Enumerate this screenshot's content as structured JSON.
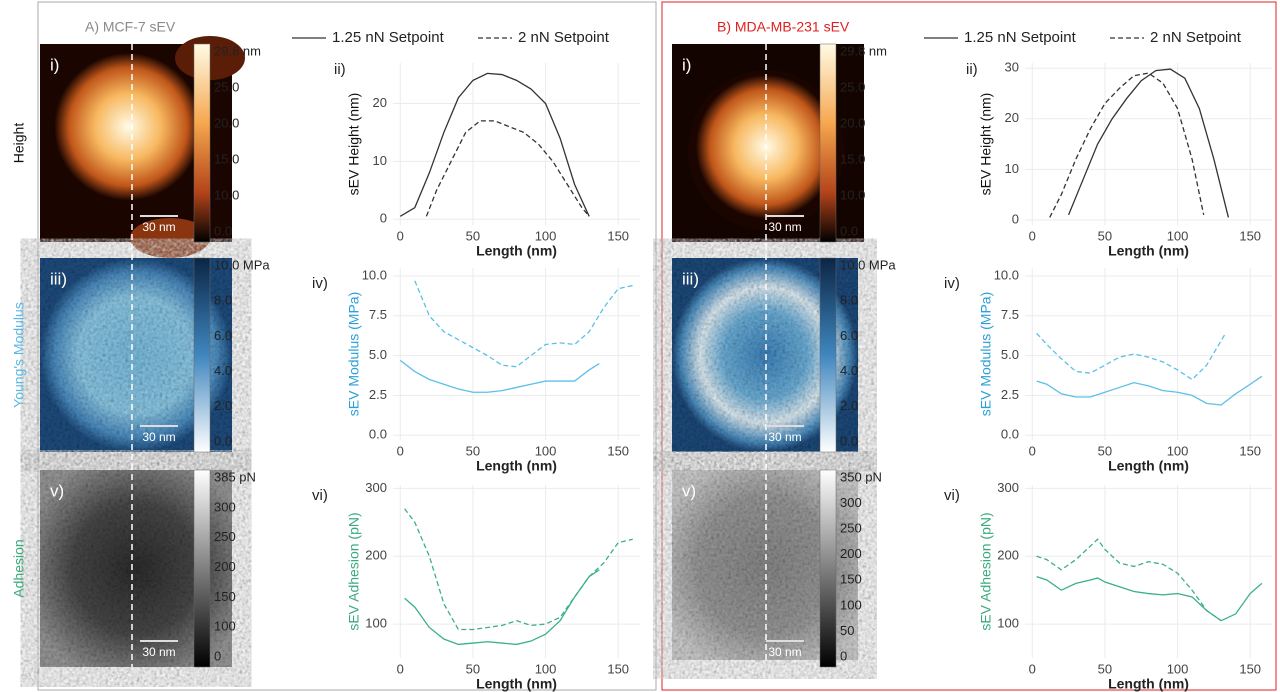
{
  "figure": {
    "row_labels": [
      {
        "text": "Height",
        "color": "#111111"
      },
      {
        "text": "Young's Modulus",
        "color": "#5bb8e6"
      },
      {
        "text": "Adhesion",
        "color": "#3aaa7e"
      }
    ],
    "panels": [
      {
        "title": "A) MCF-7 sEV",
        "title_color": "#8a8a8a",
        "rows": [
          {
            "image_label": "i)",
            "scale_bar": "30 nm",
            "chart_label": "ii)",
            "colorbar": [
              "29.8 nm",
              "25.0",
              "20.0",
              "15.0",
              "10.0",
              "0.0"
            ]
          },
          {
            "image_label": "iii)",
            "scale_bar": "30 nm",
            "chart_label": "iv)",
            "colorbar": [
              "10.0 MPa",
              "8.0",
              "6.0",
              "4.0",
              "2.0",
              "0.0"
            ]
          },
          {
            "image_label": "v)",
            "scale_bar": "30 nm",
            "chart_label": "vi)",
            "colorbar": [
              "385 pN",
              "300",
              "250",
              "200",
              "150",
              "100",
              "0"
            ]
          }
        ]
      },
      {
        "title": "B) MDA-MB-231 sEV",
        "title_color": "#e02020",
        "rows": [
          {
            "image_label": "i)",
            "scale_bar": "30 nm",
            "chart_label": "ii)",
            "colorbar": [
              "29.8 nm",
              "25.0",
              "20.0",
              "15.0",
              "10.0",
              "0.0"
            ]
          },
          {
            "image_label": "iii)",
            "scale_bar": "30 nm",
            "chart_label": "iv)",
            "colorbar": [
              "10.0 MPa",
              "8.0",
              "6.0",
              "4.0",
              "2.0",
              "0.0"
            ]
          },
          {
            "image_label": "v)",
            "scale_bar": "30 nm",
            "chart_label": "vi)",
            "colorbar": [
              "350 pN",
              "300",
              "250",
              "200",
              "150",
              "100",
              "50",
              "0"
            ]
          }
        ]
      }
    ]
  },
  "chart_data": [
    {
      "type": "line",
      "x_label": "Length (nm)",
      "y_label": "sEV Height (nm)",
      "y_label_color": "#111111",
      "xlim": [
        -5,
        165
      ],
      "ylim": [
        -1,
        27
      ],
      "xticks": [
        0,
        50,
        100,
        150
      ],
      "yticks": [
        0,
        10,
        20
      ],
      "grid": true,
      "series": [
        {
          "name": "1.25 nN Setpoint",
          "color": "#333333",
          "style": "solid",
          "x": [
            0,
            10,
            20,
            30,
            40,
            50,
            60,
            70,
            80,
            90,
            100,
            110,
            120,
            130
          ],
          "values": [
            0.5,
            2,
            8,
            15,
            21,
            24,
            25.2,
            25,
            24,
            22.5,
            20,
            14,
            6,
            0.5
          ]
        },
        {
          "name": "2 nN Setpoint",
          "color": "#333333",
          "style": "dashed",
          "x": [
            18,
            25,
            35,
            45,
            55,
            65,
            75,
            85,
            95,
            105,
            115,
            125,
            130
          ],
          "values": [
            0.5,
            5,
            10,
            15,
            17,
            17,
            16,
            15,
            13,
            10,
            6,
            2,
            0.5
          ]
        }
      ]
    },
    {
      "type": "line",
      "x_label": "Length (nm)",
      "y_label": "sEV Modulus (MPa)",
      "y_label_color": "#2aa0d8",
      "xlim": [
        -5,
        165
      ],
      "ylim": [
        -0.3,
        10.5
      ],
      "xticks": [
        0,
        50,
        100,
        150
      ],
      "yticks": [
        {
          "value": 0,
          "label": "0.0"
        },
        {
          "value": 2.5,
          "label": "2.5"
        },
        {
          "value": 5,
          "label": "5.0"
        },
        {
          "value": 7.5,
          "label": "7.5"
        },
        {
          "value": 10,
          "label": "10.0"
        }
      ],
      "grid": true,
      "series": [
        {
          "color": "#5bc0e8",
          "style": "solid",
          "x": [
            0,
            10,
            20,
            30,
            40,
            50,
            60,
            70,
            80,
            90,
            100,
            110,
            120,
            130,
            137
          ],
          "values": [
            4.7,
            4,
            3.5,
            3.2,
            2.9,
            2.7,
            2.7,
            2.8,
            3,
            3.2,
            3.4,
            3.4,
            3.4,
            4.1,
            4.5
          ]
        },
        {
          "color": "#5bc0e8",
          "style": "dashed",
          "x": [
            10,
            20,
            30,
            40,
            50,
            60,
            70,
            80,
            90,
            100,
            110,
            120,
            130,
            140,
            150,
            160
          ],
          "values": [
            9.7,
            7.5,
            6.5,
            6,
            5.5,
            5,
            4.4,
            4.3,
            5,
            5.7,
            5.8,
            5.7,
            6.5,
            8,
            9.2,
            9.4
          ]
        }
      ]
    },
    {
      "type": "line",
      "x_label": "Length (nm)",
      "y_label": "sEV Adhesion (pN)",
      "y_label_color": "#3aaa7e",
      "xlim": [
        -5,
        165
      ],
      "ylim": [
        50,
        305
      ],
      "xticks": [
        0,
        50,
        100,
        150
      ],
      "yticks": [
        100,
        200,
        300
      ],
      "grid": true,
      "series": [
        {
          "color": "#3ab08a",
          "style": "solid",
          "x": [
            3,
            10,
            20,
            30,
            40,
            50,
            60,
            70,
            80,
            90,
            100,
            110,
            120,
            130,
            137
          ],
          "values": [
            138,
            125,
            95,
            78,
            70,
            72,
            74,
            72,
            70,
            75,
            85,
            105,
            140,
            170,
            180
          ]
        },
        {
          "color": "#3ab08a",
          "style": "dashed",
          "x": [
            3,
            10,
            20,
            30,
            40,
            50,
            60,
            70,
            80,
            90,
            100,
            110,
            120,
            130,
            140,
            150,
            160
          ],
          "values": [
            270,
            250,
            200,
            130,
            92,
            92,
            95,
            98,
            105,
            98,
            100,
            110,
            140,
            170,
            190,
            220,
            225
          ]
        }
      ]
    },
    {
      "type": "line",
      "x_label": "Length (nm)",
      "y_label": "sEV Height (nm)",
      "y_label_color": "#111111",
      "xlim": [
        -5,
        165
      ],
      "ylim": [
        -1,
        31
      ],
      "xticks": [
        0,
        50,
        100,
        150
      ],
      "yticks": [
        0,
        10,
        20,
        30
      ],
      "grid": true,
      "series": [
        {
          "name": "1.25 nN Setpoint",
          "color": "#333333",
          "style": "solid",
          "x": [
            25,
            35,
            45,
            55,
            65,
            75,
            85,
            95,
            105,
            115,
            125,
            135
          ],
          "values": [
            1,
            8,
            15,
            20,
            24,
            27.5,
            29.5,
            29.8,
            28,
            22,
            12,
            0.5
          ]
        },
        {
          "name": "2 nN Setpoint",
          "color": "#333333",
          "style": "dashed",
          "x": [
            12,
            20,
            30,
            40,
            50,
            60,
            70,
            80,
            90,
            100,
            110,
            118
          ],
          "values": [
            0.5,
            5,
            12,
            18,
            23,
            26,
            28.5,
            29,
            27,
            22,
            12,
            1
          ]
        }
      ]
    },
    {
      "type": "line",
      "x_label": "Length (nm)",
      "y_label": "sEV Modulus (MPa)",
      "y_label_color": "#2aa0d8",
      "xlim": [
        -5,
        165
      ],
      "ylim": [
        -0.3,
        10.5
      ],
      "xticks": [
        0,
        50,
        100,
        150
      ],
      "yticks": [
        {
          "value": 0,
          "label": "0.0"
        },
        {
          "value": 2.5,
          "label": "2.5"
        },
        {
          "value": 5,
          "label": "5.0"
        },
        {
          "value": 7.5,
          "label": "7.5"
        },
        {
          "value": 10,
          "label": "10.0"
        }
      ],
      "grid": true,
      "series": [
        {
          "color": "#5bc0e8",
          "style": "solid",
          "x": [
            3,
            10,
            20,
            30,
            40,
            50,
            60,
            70,
            80,
            90,
            100,
            110,
            120,
            130,
            140,
            150,
            158
          ],
          "values": [
            3.4,
            3.2,
            2.6,
            2.4,
            2.4,
            2.7,
            3,
            3.3,
            3.1,
            2.8,
            2.7,
            2.5,
            2,
            1.9,
            2.6,
            3.2,
            3.7
          ]
        },
        {
          "color": "#5bc0e8",
          "style": "dashed",
          "x": [
            3,
            10,
            20,
            30,
            40,
            50,
            60,
            70,
            80,
            90,
            100,
            110,
            120,
            133
          ],
          "values": [
            6.4,
            5.7,
            4.8,
            4,
            3.9,
            4.4,
            4.9,
            5.1,
            4.9,
            4.6,
            4.1,
            3.5,
            4.4,
            6.4
          ]
        }
      ]
    },
    {
      "type": "line",
      "x_label": "Length (nm)",
      "y_label": "sEV Adhesion (pN)",
      "y_label_color": "#3aaa7e",
      "xlim": [
        -5,
        165
      ],
      "ylim": [
        50,
        305
      ],
      "xticks": [
        0,
        50,
        100,
        150
      ],
      "yticks": [
        100,
        200,
        300
      ],
      "grid": true,
      "series": [
        {
          "color": "#3ab08a",
          "style": "solid",
          "x": [
            3,
            10,
            20,
            30,
            40,
            45,
            50,
            60,
            70,
            80,
            90,
            100,
            110,
            120,
            130,
            140,
            150,
            158
          ],
          "values": [
            170,
            165,
            150,
            160,
            165,
            168,
            162,
            155,
            148,
            145,
            143,
            145,
            140,
            120,
            105,
            115,
            145,
            160
          ]
        },
        {
          "color": "#3ab08a",
          "style": "dashed",
          "x": [
            3,
            10,
            20,
            30,
            40,
            45,
            50,
            60,
            70,
            80,
            90,
            100,
            110,
            120,
            130
          ],
          "values": [
            200,
            195,
            180,
            195,
            215,
            225,
            210,
            190,
            185,
            192,
            188,
            175,
            150,
            120,
            105
          ]
        }
      ]
    }
  ]
}
